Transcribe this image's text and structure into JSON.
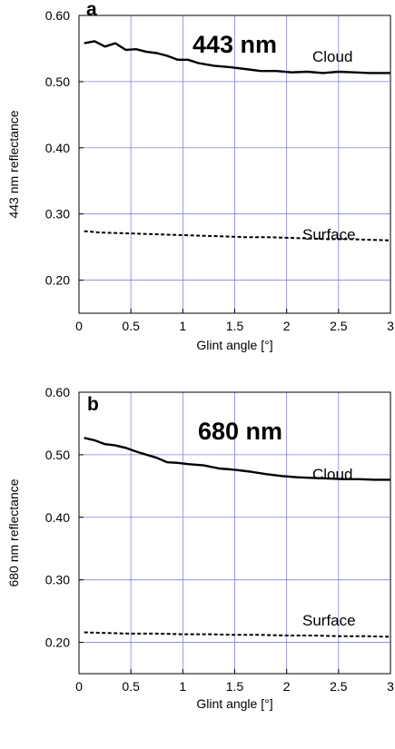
{
  "chart_data": [
    {
      "type": "line",
      "panel_label": "a",
      "annotation": "443 nm",
      "xlabel": "Glint angle [°]",
      "ylabel": "443 nm reflectance",
      "xlim": [
        0,
        3
      ],
      "ylim": [
        0.15,
        0.6
      ],
      "xticks": [
        0,
        0.5,
        1,
        1.5,
        2,
        2.5,
        3
      ],
      "xtick_labels": [
        "0",
        "0.5",
        "1",
        "1.5",
        "2",
        "2.5",
        "3"
      ],
      "yticks": [
        0.2,
        0.3,
        0.4,
        0.5,
        0.6
      ],
      "ytick_labels": [
        "0.20",
        "0.30",
        "0.40",
        "0.50",
        "0.60"
      ],
      "grid": true,
      "series": [
        {
          "name": "Cloud",
          "style": "solid",
          "x": [
            0.05,
            0.15,
            0.25,
            0.35,
            0.45,
            0.55,
            0.65,
            0.75,
            0.85,
            0.95,
            1.05,
            1.15,
            1.3,
            1.45,
            1.6,
            1.75,
            1.9,
            2.05,
            2.2,
            2.35,
            2.5,
            2.65,
            2.8,
            2.95,
            3.0
          ],
          "y": [
            0.558,
            0.561,
            0.553,
            0.558,
            0.548,
            0.549,
            0.545,
            0.543,
            0.539,
            0.533,
            0.533,
            0.528,
            0.524,
            0.522,
            0.519,
            0.516,
            0.516,
            0.514,
            0.515,
            0.513,
            0.515,
            0.514,
            0.513,
            0.513,
            0.513
          ]
        },
        {
          "name": "Surface",
          "style": "dashed",
          "x": [
            0.05,
            0.2,
            0.4,
            0.6,
            0.8,
            1.0,
            1.2,
            1.4,
            1.6,
            1.8,
            2.0,
            2.2,
            2.4,
            2.6,
            2.8,
            3.0
          ],
          "y": [
            0.274,
            0.272,
            0.271,
            0.27,
            0.269,
            0.268,
            0.267,
            0.266,
            0.265,
            0.265,
            0.264,
            0.263,
            0.262,
            0.262,
            0.261,
            0.26
          ]
        }
      ]
    },
    {
      "type": "line",
      "panel_label": "b",
      "annotation": "680 nm",
      "xlabel": "Glint angle [°]",
      "ylabel": "680 nm reflectance",
      "xlim": [
        0,
        3
      ],
      "ylim": [
        0.15,
        0.6
      ],
      "xticks": [
        0,
        0.5,
        1,
        1.5,
        2,
        2.5,
        3
      ],
      "xtick_labels": [
        "0",
        "0.5",
        "1",
        "1.5",
        "2",
        "2.5",
        "3"
      ],
      "yticks": [
        0.2,
        0.3,
        0.4,
        0.5,
        0.6
      ],
      "ytick_labels": [
        "0.20",
        "0.30",
        "0.40",
        "0.50",
        "0.60"
      ],
      "grid": true,
      "series": [
        {
          "name": "Cloud",
          "style": "solid",
          "x": [
            0.05,
            0.15,
            0.25,
            0.35,
            0.45,
            0.55,
            0.65,
            0.75,
            0.85,
            0.95,
            1.05,
            1.2,
            1.35,
            1.5,
            1.65,
            1.8,
            1.95,
            2.1,
            2.25,
            2.4,
            2.55,
            2.7,
            2.85,
            3.0
          ],
          "y": [
            0.527,
            0.523,
            0.517,
            0.515,
            0.511,
            0.505,
            0.5,
            0.495,
            0.488,
            0.487,
            0.485,
            0.483,
            0.478,
            0.476,
            0.473,
            0.469,
            0.466,
            0.464,
            0.463,
            0.462,
            0.461,
            0.461,
            0.46,
            0.46
          ]
        },
        {
          "name": "Surface",
          "style": "dashed",
          "x": [
            0.05,
            0.25,
            0.5,
            0.75,
            1.0,
            1.25,
            1.5,
            1.75,
            2.0,
            2.25,
            2.5,
            2.75,
            3.0
          ],
          "y": [
            0.216,
            0.215,
            0.214,
            0.214,
            0.213,
            0.213,
            0.212,
            0.212,
            0.211,
            0.211,
            0.21,
            0.21,
            0.209
          ]
        }
      ]
    }
  ]
}
